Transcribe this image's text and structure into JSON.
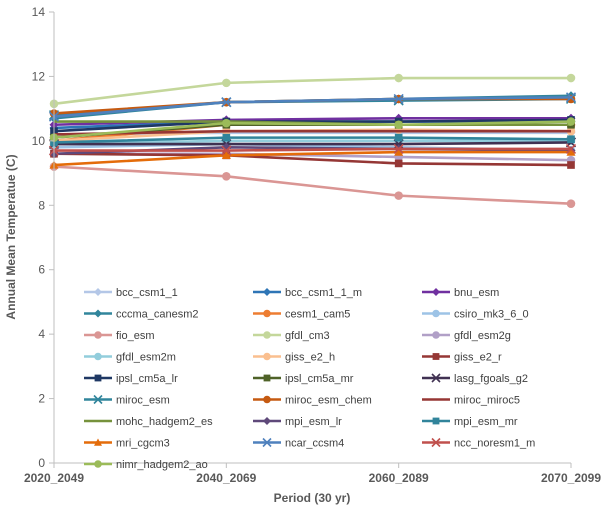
{
  "chart_data": {
    "type": "line",
    "title": "",
    "xlabel": "Period (30 yr)",
    "ylabel": "Annual Mean Temperatue (C)",
    "ylim": [
      0,
      14
    ],
    "yticks": [
      0,
      2,
      4,
      6,
      8,
      10,
      12,
      14
    ],
    "grid": false,
    "legend_position": "bottom-inside",
    "categories": [
      "2020_2049",
      "2040_2069",
      "2060_2089",
      "2070_2099"
    ],
    "series": [
      {
        "name": "bcc_csm1_1",
        "color": "#b4c7e7",
        "marker": "diamond",
        "values": [
          10.2,
          10.25,
          10.25,
          10.25
        ]
      },
      {
        "name": "bcc_csm1_1_m",
        "color": "#2e75b6",
        "marker": "diamond",
        "values": [
          10.4,
          10.6,
          10.6,
          10.6
        ]
      },
      {
        "name": "bnu_esm",
        "color": "#7030a0",
        "marker": "diamond",
        "values": [
          10.5,
          10.65,
          10.7,
          10.7
        ]
      },
      {
        "name": "cccma_canesm2",
        "color": "#31859c",
        "marker": "diamond",
        "values": [
          10.7,
          11.2,
          11.3,
          11.4
        ]
      },
      {
        "name": "cesm1_cam5",
        "color": "#ed7d31",
        "marker": "circle",
        "values": [
          10.0,
          10.5,
          10.5,
          10.5
        ]
      },
      {
        "name": "csiro_mk3_6_0",
        "color": "#9dc3e6",
        "marker": "circle",
        "values": [
          9.8,
          9.9,
          9.8,
          9.7
        ]
      },
      {
        "name": "fio_esm",
        "color": "#da9694",
        "marker": "circle",
        "values": [
          9.2,
          8.9,
          8.3,
          8.05
        ]
      },
      {
        "name": "gfdl_cm3",
        "color": "#c4d79b",
        "marker": "circle",
        "values": [
          11.15,
          11.8,
          11.95,
          11.95
        ]
      },
      {
        "name": "gfdl_esm2g",
        "color": "#b1a0c7",
        "marker": "circle",
        "values": [
          9.6,
          9.6,
          9.5,
          9.4
        ]
      },
      {
        "name": "gfdl_esm2m",
        "color": "#92cddc",
        "marker": "circle",
        "values": [
          9.9,
          10.0,
          10.0,
          10.0
        ]
      },
      {
        "name": "giss_e2_h",
        "color": "#fabf8f",
        "marker": "circle",
        "values": [
          10.0,
          10.3,
          10.35,
          10.3
        ]
      },
      {
        "name": "giss_e2_r",
        "color": "#953735",
        "marker": "square",
        "values": [
          9.6,
          9.55,
          9.3,
          9.25
        ]
      },
      {
        "name": "ipsl_cm5a_lr",
        "color": "#1f3864",
        "marker": "square",
        "values": [
          10.3,
          10.6,
          10.6,
          10.65
        ]
      },
      {
        "name": "ipsl_cm5a_mr",
        "color": "#4f6228",
        "marker": "square",
        "values": [
          10.1,
          10.5,
          10.5,
          10.5
        ]
      },
      {
        "name": "lasg_fgoals_g2",
        "color": "#403152",
        "marker": "x",
        "values": [
          9.9,
          9.9,
          9.9,
          9.95
        ]
      },
      {
        "name": "miroc_esm",
        "color": "#31859c",
        "marker": "x",
        "values": [
          10.8,
          11.2,
          11.25,
          11.3
        ]
      },
      {
        "name": "miroc_esm_chem",
        "color": "#c55a11",
        "marker": "circle",
        "values": [
          10.85,
          11.2,
          11.3,
          11.3
        ]
      },
      {
        "name": "miroc_miroc5",
        "color": "#963634",
        "marker": "none",
        "values": [
          10.2,
          10.3,
          10.3,
          10.3
        ]
      },
      {
        "name": "mohc_hadgem2_es",
        "color": "#76923c",
        "marker": "none",
        "values": [
          10.6,
          10.6,
          10.5,
          10.5
        ]
      },
      {
        "name": "mpi_esm_lr",
        "color": "#5f497a",
        "marker": "diamond",
        "values": [
          9.6,
          9.8,
          9.75,
          9.7
        ]
      },
      {
        "name": "mpi_esm_mr",
        "color": "#31849b",
        "marker": "square",
        "values": [
          9.95,
          10.1,
          10.1,
          10.05
        ]
      },
      {
        "name": "mri_cgcm3",
        "color": "#e46c0a",
        "marker": "triangle",
        "values": [
          9.25,
          9.55,
          9.65,
          9.65
        ]
      },
      {
        "name": "ncar_ccsm4",
        "color": "#4f81bd",
        "marker": "x",
        "values": [
          10.75,
          11.2,
          11.3,
          11.35
        ]
      },
      {
        "name": "ncc_noresm1_m",
        "color": "#c0504d",
        "marker": "x",
        "values": [
          9.7,
          9.7,
          9.75,
          9.75
        ]
      },
      {
        "name": "nimr_hadgem2_ao",
        "color": "#9bbb59",
        "marker": "circle",
        "values": [
          10.1,
          10.55,
          10.5,
          10.6
        ]
      }
    ]
  }
}
